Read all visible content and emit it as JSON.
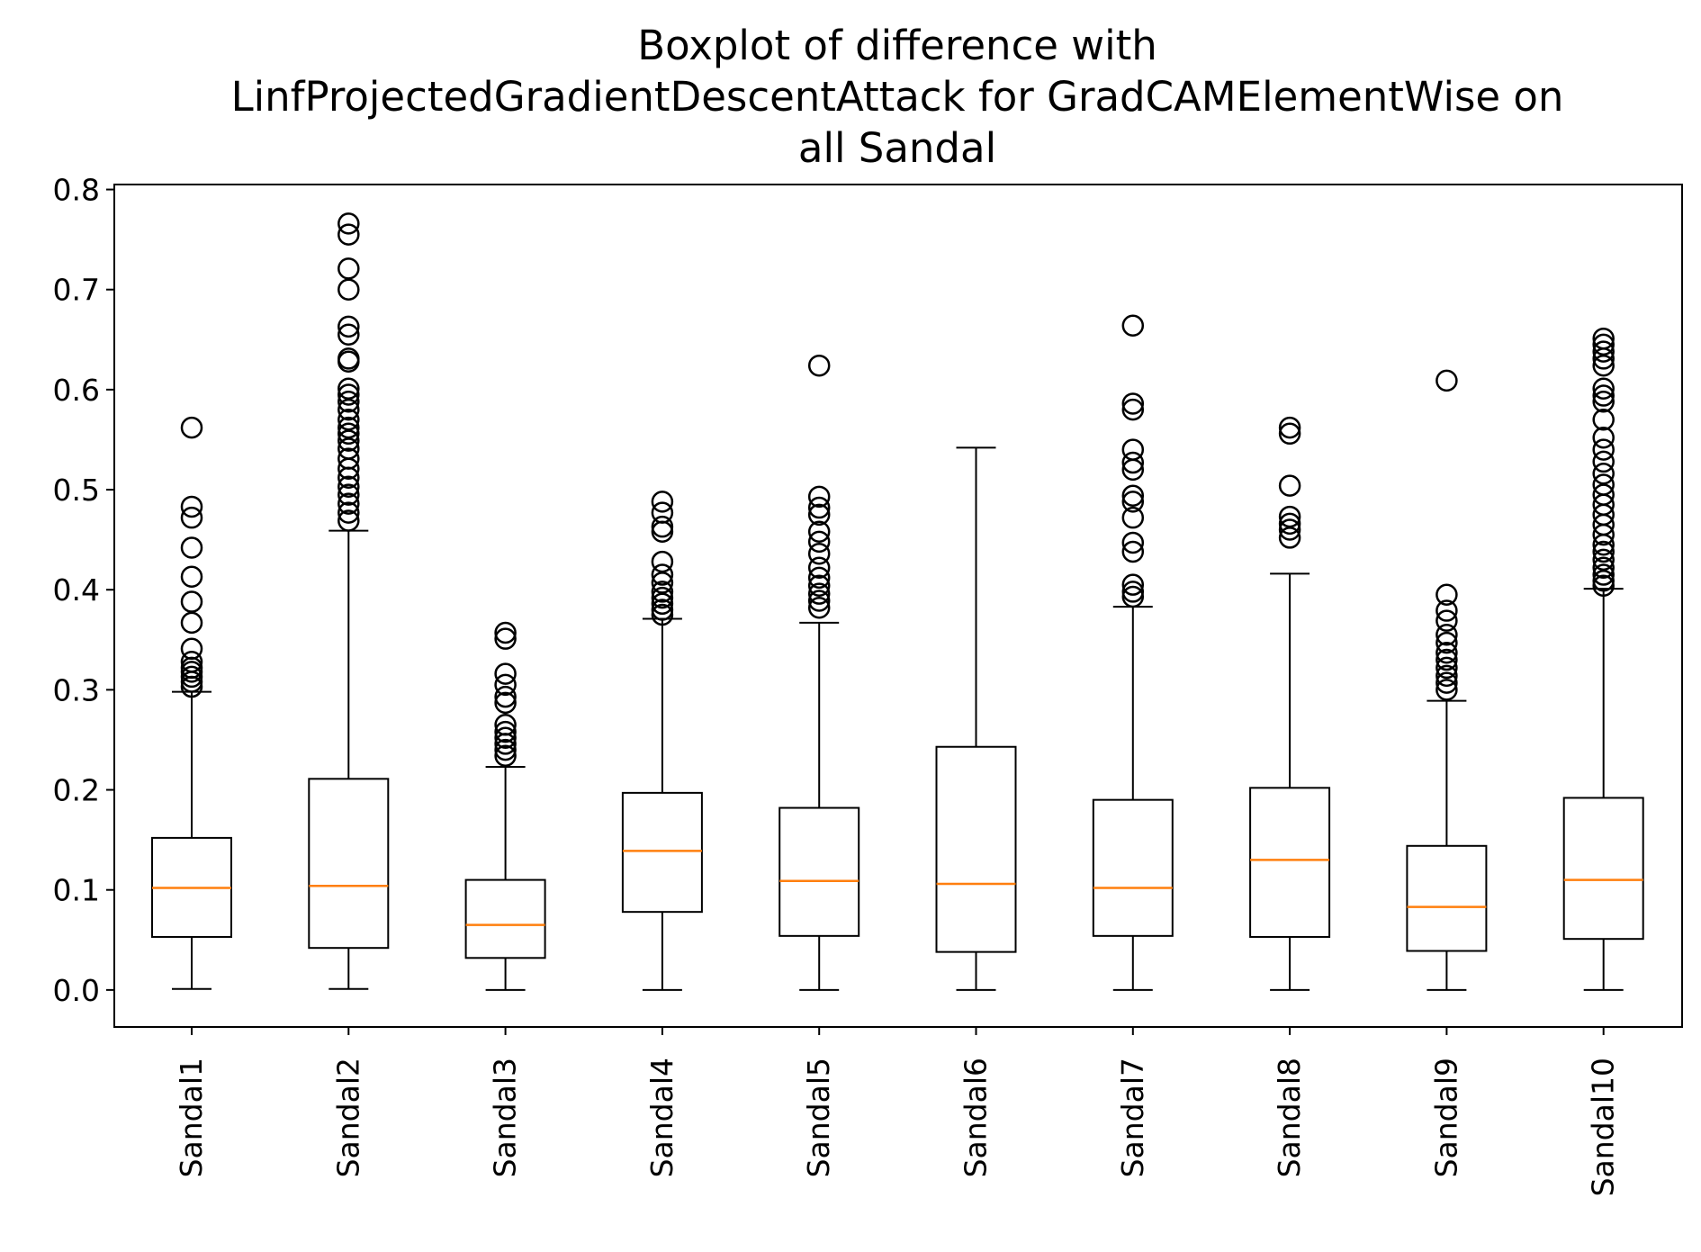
{
  "chart_data": {
    "type": "boxplot",
    "title_lines": [
      "Boxplot of difference with",
      "LinfProjectedGradientDescentAttack for GradCAMElementWise on",
      "all Sandal"
    ],
    "xlabel": "",
    "ylabel": "",
    "ylim": [
      -0.037,
      0.805
    ],
    "yticks": [
      0.0,
      0.1,
      0.2,
      0.3,
      0.4,
      0.5,
      0.6,
      0.7,
      0.8
    ],
    "ytick_labels": [
      "0.0",
      "0.1",
      "0.2",
      "0.3",
      "0.4",
      "0.5",
      "0.6",
      "0.7",
      "0.8"
    ],
    "grid": false,
    "colors": {
      "box": "#000000",
      "median": "#ff7f0e",
      "flier": "#000000"
    },
    "boxes": [
      {
        "label": "Sandal1",
        "whislo": 0.001,
        "q1": 0.053,
        "med": 0.102,
        "q3": 0.152,
        "whishi": 0.298,
        "fliers": [
          0.562,
          0.483,
          0.472,
          0.442,
          0.413,
          0.388,
          0.367,
          0.341,
          0.328,
          0.322,
          0.318,
          0.313,
          0.308,
          0.303
        ]
      },
      {
        "label": "Sandal2",
        "whislo": 0.001,
        "q1": 0.042,
        "med": 0.104,
        "q3": 0.211,
        "whishi": 0.459,
        "fliers": [
          0.766,
          0.755,
          0.721,
          0.7,
          0.663,
          0.655,
          0.631,
          0.628,
          0.601,
          0.595,
          0.588,
          0.58,
          0.57,
          0.562,
          0.556,
          0.549,
          0.541,
          0.531,
          0.521,
          0.512,
          0.503,
          0.495,
          0.486,
          0.477,
          0.469
        ]
      },
      {
        "label": "Sandal3",
        "whislo": 0.0,
        "q1": 0.032,
        "med": 0.065,
        "q3": 0.11,
        "whishi": 0.223,
        "fliers": [
          0.357,
          0.351,
          0.316,
          0.305,
          0.293,
          0.287,
          0.265,
          0.258,
          0.252,
          0.246,
          0.24,
          0.234
        ]
      },
      {
        "label": "Sandal4",
        "whislo": 0.0,
        "q1": 0.078,
        "med": 0.139,
        "q3": 0.197,
        "whishi": 0.371,
        "fliers": [
          0.488,
          0.477,
          0.463,
          0.458,
          0.428,
          0.415,
          0.407,
          0.398,
          0.392,
          0.386,
          0.38,
          0.375
        ]
      },
      {
        "label": "Sandal5",
        "whislo": 0.0,
        "q1": 0.054,
        "med": 0.109,
        "q3": 0.182,
        "whishi": 0.367,
        "fliers": [
          0.624,
          0.493,
          0.482,
          0.475,
          0.458,
          0.448,
          0.436,
          0.422,
          0.412,
          0.404,
          0.396,
          0.389,
          0.382
        ]
      },
      {
        "label": "Sandal6",
        "whislo": 0.0,
        "q1": 0.038,
        "med": 0.106,
        "q3": 0.243,
        "whishi": 0.542,
        "fliers": []
      },
      {
        "label": "Sandal7",
        "whislo": 0.0,
        "q1": 0.054,
        "med": 0.102,
        "q3": 0.19,
        "whishi": 0.383,
        "fliers": [
          0.664,
          0.586,
          0.58,
          0.54,
          0.527,
          0.52,
          0.494,
          0.488,
          0.472,
          0.447,
          0.438,
          0.405,
          0.398,
          0.393
        ]
      },
      {
        "label": "Sandal8",
        "whislo": 0.0,
        "q1": 0.053,
        "med": 0.13,
        "q3": 0.202,
        "whishi": 0.416,
        "fliers": [
          0.562,
          0.556,
          0.504,
          0.473,
          0.466,
          0.46,
          0.452
        ]
      },
      {
        "label": "Sandal9",
        "whislo": 0.0,
        "q1": 0.039,
        "med": 0.083,
        "q3": 0.144,
        "whishi": 0.289,
        "fliers": [
          0.609,
          0.395,
          0.379,
          0.369,
          0.355,
          0.347,
          0.337,
          0.33,
          0.322,
          0.314,
          0.307,
          0.3
        ]
      },
      {
        "label": "Sandal10",
        "whislo": 0.0,
        "q1": 0.051,
        "med": 0.11,
        "q3": 0.192,
        "whishi": 0.401,
        "fliers": [
          0.651,
          0.645,
          0.638,
          0.631,
          0.624,
          0.601,
          0.594,
          0.588,
          0.57,
          0.552,
          0.54,
          0.528,
          0.516,
          0.505,
          0.495,
          0.485,
          0.475,
          0.465,
          0.455,
          0.445,
          0.438,
          0.43,
          0.422,
          0.415,
          0.409,
          0.404
        ]
      }
    ]
  }
}
